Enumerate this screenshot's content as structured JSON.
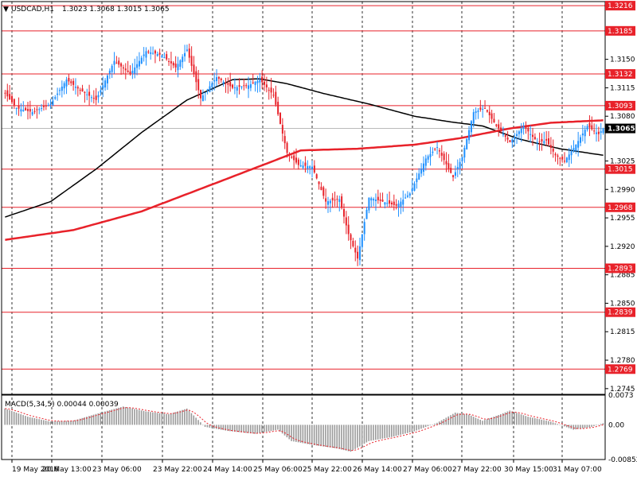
{
  "header": {
    "symbol": "USDCAD,H1",
    "ohlc": "1.3023 1.3068 1.3015 1.3065",
    "macd_label": "MACD(5,34,5) 0.00044 0.00039"
  },
  "colors": {
    "bull": "#1e90ff",
    "bear": "#e8222a",
    "level": "#e8222a",
    "ma_fast": "#e8222a",
    "ma_slow": "#000000",
    "grid": "#000000",
    "current_price_bg": "#000000"
  },
  "chart_data": [
    {
      "type": "candlestick",
      "title": "USDCAD,H1",
      "ylim": [
        1.2738,
        1.3221
      ],
      "y_ticks": [
        "1.3150",
        "1.3115",
        "1.3080",
        "1.3025",
        "1.2990",
        "1.2955",
        "1.2920",
        "1.2885",
        "1.2850",
        "1.2815",
        "1.2780",
        "1.2745"
      ],
      "x_labels": [
        "19 May 2016",
        "20 May 13:00",
        "23 May 06:00",
        "23 May 22:00",
        "24 May 14:00",
        "25 May 06:00",
        "25 May 22:00",
        "26 May 14:00",
        "27 May 06:00",
        "27 May 22:00",
        "30 May 15:00",
        "31 May 07:00"
      ],
      "grid": "dashed vertical",
      "current_price": "1.3065",
      "levels": [
        "1.3216",
        "1.3185",
        "1.3132",
        "1.3093",
        "1.3015",
        "1.2968",
        "1.2893",
        "1.2839",
        "1.2769"
      ],
      "series": [
        {
          "name": "candles",
          "anchors": [
            [
              0,
              1.3108
            ],
            [
              5,
              1.309
            ],
            [
              12,
              1.3085
            ],
            [
              20,
              1.3095
            ],
            [
              27,
              1.3125
            ],
            [
              33,
              1.3112
            ],
            [
              40,
              1.31
            ],
            [
              48,
              1.3148
            ],
            [
              55,
              1.3132
            ],
            [
              62,
              1.316
            ],
            [
              69,
              1.3155
            ],
            [
              75,
              1.314
            ],
            [
              80,
              1.3162
            ],
            [
              86,
              1.3102
            ],
            [
              93,
              1.3128
            ],
            [
              100,
              1.3115
            ],
            [
              107,
              1.3118
            ],
            [
              112,
              1.3125
            ],
            [
              118,
              1.3106
            ],
            [
              124,
              1.3035
            ],
            [
              129,
              1.302
            ],
            [
              135,
              1.3018
            ],
            [
              141,
              1.2975
            ],
            [
              147,
              1.2978
            ],
            [
              151,
              1.2935
            ],
            [
              155,
              1.2905
            ],
            [
              160,
              1.298
            ],
            [
              166,
              1.2975
            ],
            [
              172,
              1.297
            ],
            [
              178,
              1.2985
            ],
            [
              185,
              1.3028
            ],
            [
              190,
              1.3042
            ],
            [
              197,
              1.3005
            ],
            [
              201,
              1.303
            ],
            [
              206,
              1.3085
            ],
            [
              211,
              1.309
            ],
            [
              216,
              1.3068
            ],
            [
              222,
              1.3048
            ],
            [
              228,
              1.3068
            ],
            [
              234,
              1.3048
            ],
            [
              238,
              1.305
            ],
            [
              242,
              1.3032
            ],
            [
              246,
              1.3025
            ],
            [
              251,
              1.3045
            ],
            [
              256,
              1.3068
            ],
            [
              261,
              1.3058
            ],
            [
              263,
              1.3065
            ]
          ]
        },
        {
          "name": "slow_ma",
          "anchors": [
            [
              0,
              1.2956
            ],
            [
              20,
              1.2975
            ],
            [
              40,
              1.3015
            ],
            [
              60,
              1.306
            ],
            [
              80,
              1.31
            ],
            [
              100,
              1.3125
            ],
            [
              112,
              1.3126
            ],
            [
              124,
              1.312
            ],
            [
              140,
              1.3108
            ],
            [
              160,
              1.3095
            ],
            [
              180,
              1.308
            ],
            [
              196,
              1.3073
            ],
            [
              210,
              1.3068
            ],
            [
              226,
              1.3052
            ],
            [
              244,
              1.304
            ],
            [
              263,
              1.3032
            ]
          ]
        },
        {
          "name": "fast_ma",
          "anchors": [
            [
              0,
              1.2928
            ],
            [
              30,
              1.294
            ],
            [
              60,
              1.2963
            ],
            [
              90,
              1.2995
            ],
            [
              118,
              1.3025
            ],
            [
              130,
              1.3038
            ],
            [
              155,
              1.304
            ],
            [
              180,
              1.3045
            ],
            [
              200,
              1.3053
            ],
            [
              222,
              1.3065
            ],
            [
              240,
              1.3072
            ],
            [
              263,
              1.3075
            ]
          ]
        }
      ]
    },
    {
      "type": "bar",
      "title": "MACD(5,34,5) 0.00044 0.00039",
      "ylim": [
        -0.00852,
        0.0073
      ],
      "y_ticks": [
        "0.0073",
        "0.00",
        "-0.00852"
      ],
      "series": [
        {
          "name": "histogram",
          "anchors": [
            [
              0,
              0.004
            ],
            [
              10,
              0.002
            ],
            [
              20,
              0.0008
            ],
            [
              30,
              0.001
            ],
            [
              42,
              0.003
            ],
            [
              52,
              0.0045
            ],
            [
              62,
              0.0033
            ],
            [
              72,
              0.0026
            ],
            [
              80,
              0.004
            ],
            [
              88,
              -0.0005
            ],
            [
              98,
              -0.0015
            ],
            [
              110,
              -0.0022
            ],
            [
              120,
              -0.0012
            ],
            [
              126,
              -0.004
            ],
            [
              136,
              -0.005
            ],
            [
              146,
              -0.0058
            ],
            [
              152,
              -0.0066
            ],
            [
              160,
              -0.004
            ],
            [
              170,
              -0.003
            ],
            [
              180,
              -0.0016
            ],
            [
              190,
              0.0005
            ],
            [
              198,
              0.003
            ],
            [
              204,
              0.0025
            ],
            [
              210,
              0.001
            ],
            [
              216,
              0.0022
            ],
            [
              222,
              0.0035
            ],
            [
              230,
              0.002
            ],
            [
              240,
              0.0008
            ],
            [
              250,
              -0.0012
            ],
            [
              258,
              -0.0005
            ],
            [
              263,
              0.0004
            ]
          ]
        }
      ]
    }
  ]
}
